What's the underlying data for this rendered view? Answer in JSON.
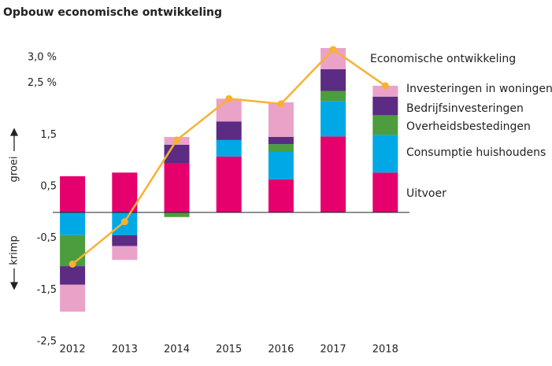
{
  "chart_data": {
    "type": "bar",
    "stacked": true,
    "title": "Opbouw economische ontwikkeling",
    "axis_up_label": "groei",
    "axis_down_label": "krimp",
    "categories": [
      "2012",
      "2013",
      "2014",
      "2015",
      "2016",
      "2017",
      "2018"
    ],
    "series": [
      {
        "name": "Uitvoer",
        "color": "#e5006d",
        "values": [
          0.7,
          0.77,
          0.95,
          1.08,
          0.64,
          1.47,
          0.77
        ]
      },
      {
        "name": "Consumptie huishoudens",
        "color": "#00a9e6",
        "values": [
          -0.44,
          -0.44,
          0,
          0.32,
          0.53,
          0.68,
          0.73
        ]
      },
      {
        "name": "Overheidsbestedingen",
        "color": "#4b9d3d",
        "values": [
          -0.6,
          0,
          -0.09,
          0,
          0.15,
          0.2,
          0.38
        ]
      },
      {
        "name": "Bedrijfsinvesteringen",
        "color": "#5c2b83",
        "values": [
          -0.36,
          -0.21,
          0.36,
          0.36,
          0.14,
          0.42,
          0.36
        ]
      },
      {
        "name": "Investeringen in woningen",
        "color": "#eba2c9",
        "values": [
          -0.52,
          -0.27,
          0.15,
          0.44,
          0.67,
          0.41,
          0.21
        ]
      },
      {
        "name": "Economische ontwikkeling",
        "color": "#f7b233",
        "type": "line",
        "values": [
          -1.0,
          -0.18,
          1.4,
          2.2,
          2.1,
          3.15,
          2.45
        ]
      }
    ],
    "ylim": [
      -2.5,
      3.5
    ],
    "yticks": [
      {
        "value": -2.5,
        "label": "-2,5"
      },
      {
        "value": -1.5,
        "label": "-1,5"
      },
      {
        "value": -0.5,
        "label": "-0,5"
      },
      {
        "value": 0.5,
        "label": "0,5"
      },
      {
        "value": 1.5,
        "label": "1,5"
      },
      {
        "value": 2.5,
        "label": "2,5 %"
      },
      {
        "value": 3.0,
        "label": "3,0 %"
      }
    ]
  }
}
